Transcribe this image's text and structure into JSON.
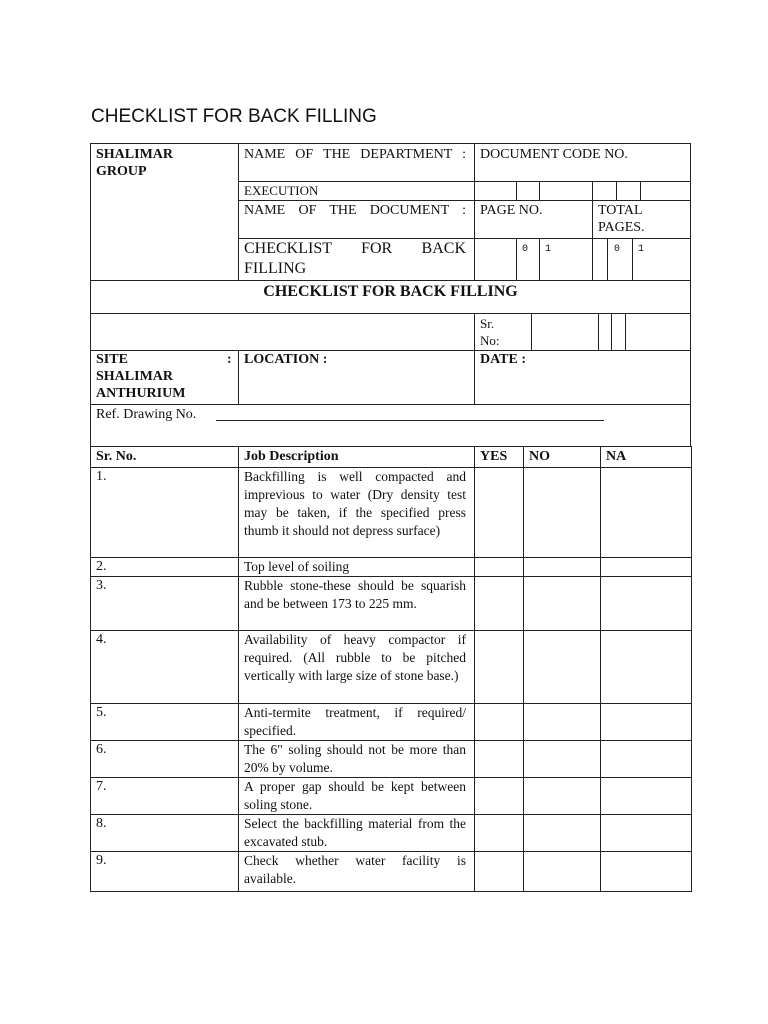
{
  "title": "CHECKLIST FOR BACK FILLING",
  "header": {
    "company": "SHALIMAR GROUP",
    "dept_label": "NAME OF THE DEPARTMENT :",
    "dept_value": "EXECUTION",
    "doc_code_label": "DOCUMENT CODE NO.",
    "doc_name_label": "NAME OF THE DOCUMENT :",
    "doc_name_value": "CHECKLIST FOR BACK FILLING",
    "page_no_label": "PAGE NO.",
    "total_pages_label": "TOTAL PAGES.",
    "page_digits": [
      "0",
      "1"
    ],
    "total_digits": [
      "0",
      "1"
    ],
    "form_title": "CHECKLIST FOR BACK FILLING",
    "sr_no_label": "Sr. No:",
    "site_label": "SITE",
    "site_colon": ":",
    "site_value": "SHALIMAR ANTHURIUM",
    "location_label": "LOCATION :",
    "date_label": "DATE :",
    "ref_drawing_label": "Ref. Drawing No."
  },
  "table": {
    "columns": [
      "Sr. No.",
      "Job Description",
      "YES",
      "NO",
      "NA"
    ],
    "rows": [
      {
        "no": "1.",
        "desc": "Backfilling is well compacted and imprevious to water (Dry density test may be taken, if the specified press thumb it should not depress surface)"
      },
      {
        "no": "2.",
        "desc": "Top level of soiling"
      },
      {
        "no": "3.",
        "desc": "Rubble stone-these should be squarish and be between 173 to 225 mm."
      },
      {
        "no": "4.",
        "desc": "Availability of heavy compactor if required. (All rubble to be pitched vertically with large size of stone base.)"
      },
      {
        "no": "5.",
        "desc": "Anti-termite treatment, if required/ specified."
      },
      {
        "no": "6.",
        "desc": "The 6\" soling should not be more than 20% by volume."
      },
      {
        "no": "7.",
        "desc": "A proper gap should be kept between soling stone."
      },
      {
        "no": "8.",
        "desc": "Select the backfilling material from the excavated stub."
      },
      {
        "no": "9.",
        "desc": "Check whether water facility is available."
      }
    ]
  }
}
